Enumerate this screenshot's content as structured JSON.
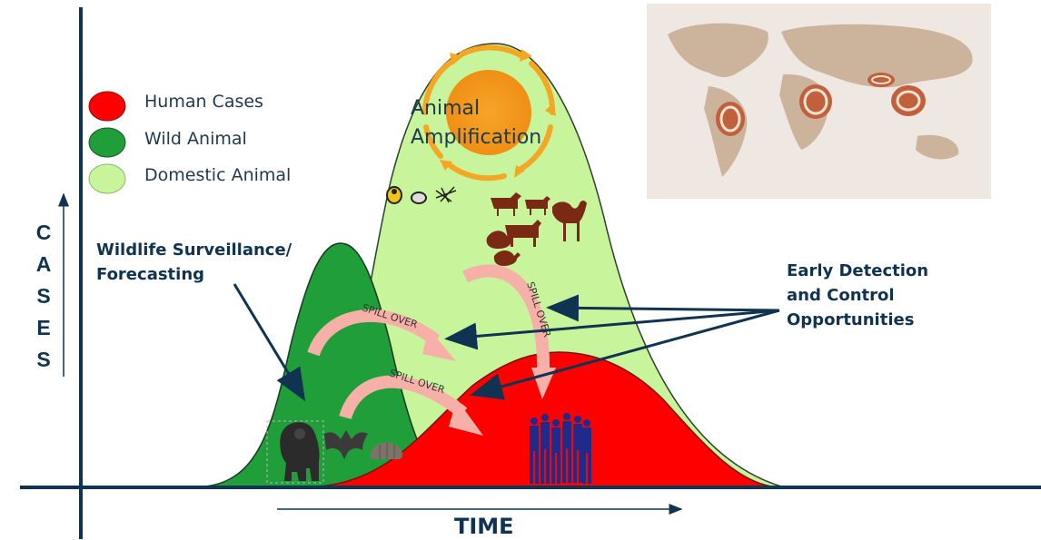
{
  "legend": {
    "items": [
      {
        "label": "Human Cases",
        "color": "#ff0000"
      },
      {
        "label": "Wild Animal",
        "color": "#1f9e3a"
      },
      {
        "label": "Domestic Animal",
        "color": "#c8f59b"
      }
    ]
  },
  "axes": {
    "y_letters": [
      "C",
      "A",
      "S",
      "E",
      "S"
    ],
    "x_label": "TIME"
  },
  "labels": {
    "amplification_line1": "Animal",
    "amplification_line2": "Amplification",
    "wildlife_line1": "Wildlife Surveillance/",
    "wildlife_line2": "Forecasting",
    "early_line1": "Early Detection",
    "early_line2": "and Control",
    "early_line3": "Opportunities",
    "spill_over": "SPILL OVER"
  },
  "colors": {
    "human": "#ff0000",
    "wild": "#1f9e3a",
    "domestic": "#c8f59b",
    "axis": "#0f3350",
    "sun": "#f39a1d",
    "map_bg": "#efe7e2",
    "map_land": "#ccb39b"
  },
  "icons": [
    "map-icon",
    "sun-icon",
    "tick-icon",
    "mosquito-icon",
    "livestock-icon",
    "camel-icon",
    "gorilla-icon",
    "bat-icon",
    "armadillo-icon",
    "people-icon"
  ]
}
